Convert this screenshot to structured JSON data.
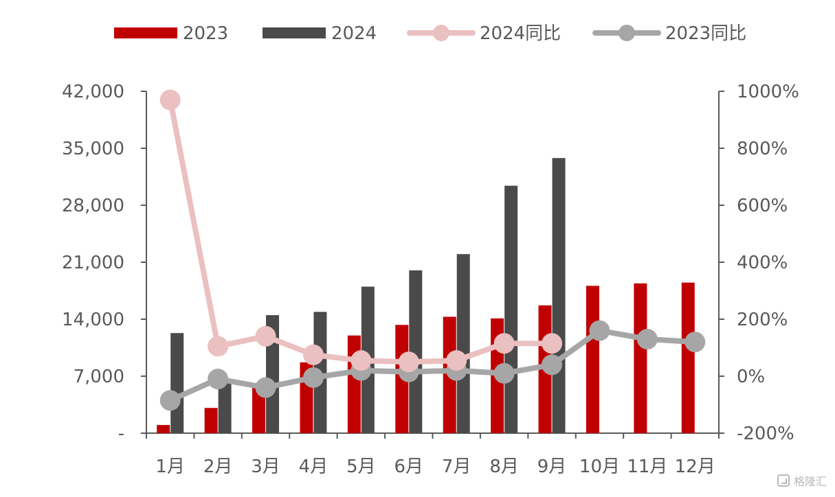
{
  "chart_data": {
    "type": "bar-line-combo",
    "title": "",
    "xlabel": "",
    "ylabel": "",
    "categories": [
      "1月",
      "2月",
      "3月",
      "4月",
      "5月",
      "6月",
      "7月",
      "8月",
      "9月",
      "10月",
      "11月",
      "12月"
    ],
    "left_axis": {
      "min": 0,
      "max": 42000,
      "ticks": [
        0,
        7000,
        14000,
        21000,
        28000,
        35000,
        42000
      ],
      "tick_labels": [
        "-",
        "7,000",
        "14,000",
        "21,000",
        "28,000",
        "35,000",
        "42,000"
      ]
    },
    "right_axis": {
      "min": -200,
      "max": 1000,
      "ticks": [
        -200,
        0,
        200,
        400,
        600,
        800,
        1000
      ],
      "tick_labels": [
        "-200%",
        "0%",
        "200%",
        "400%",
        "600%",
        "800%",
        "1000%"
      ]
    },
    "bar_series": [
      {
        "name": "2023",
        "color": "#C00000",
        "values": [
          1000,
          3100,
          5800,
          8700,
          12000,
          13300,
          14300,
          14100,
          15700,
          18100,
          18400,
          18500
        ]
      },
      {
        "name": "2024",
        "color": "#4A4A4A",
        "values": [
          12300,
          6400,
          14500,
          14900,
          18000,
          20000,
          22000,
          30400,
          33800,
          null,
          null,
          null
        ]
      }
    ],
    "line_series": [
      {
        "name": "2024同比",
        "color": "#EBC0C0",
        "axis": "right",
        "values": [
          970,
          105,
          140,
          75,
          55,
          50,
          55,
          115,
          115,
          null,
          null,
          null
        ]
      },
      {
        "name": "2023同比",
        "color": "#A6A6A6",
        "axis": "right",
        "values": [
          -85,
          -10,
          -40,
          -5,
          20,
          15,
          20,
          10,
          40,
          160,
          130,
          120
        ]
      }
    ],
    "legend_position": "top",
    "grid": false
  },
  "watermark": {
    "text": "格隆汇"
  }
}
